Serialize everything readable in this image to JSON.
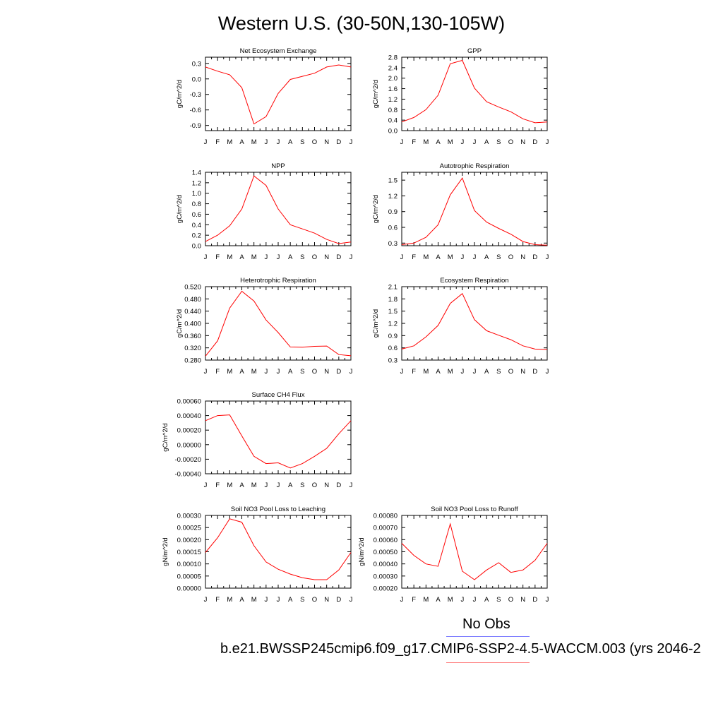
{
  "figure": {
    "title": "Western U.S. (30-50N,130-105W)"
  },
  "legend": {
    "obs_label": "No Obs",
    "obs_color": "#8080ff",
    "model_label": "b.e21.BWSSP245cmip6.f09_g17.CMIP6-SSP2-4.5-WACCM.003 (yrs 2046-2",
    "model_color": "#ff8080"
  },
  "chart_data": [
    {
      "type": "line",
      "title": "Net Ecosystem Exchange",
      "ylabel": "gC/m^2/d",
      "xlabel": "",
      "categories": [
        "J",
        "F",
        "M",
        "A",
        "M",
        "J",
        "J",
        "A",
        "S",
        "O",
        "N",
        "D",
        "J"
      ],
      "ylim": [
        -1.0,
        0.42
      ],
      "yticks": [
        0.3,
        0.0,
        -0.3,
        -0.6,
        -0.9
      ],
      "ytick_labels": [
        "0.3",
        "0.0",
        "-0.3",
        "-0.6",
        "-0.9"
      ],
      "series": [
        {
          "color": "#ff0000",
          "values": [
            0.23,
            0.15,
            0.08,
            -0.17,
            -0.87,
            -0.73,
            -0.28,
            -0.01,
            0.05,
            0.11,
            0.23,
            0.27,
            0.23
          ]
        }
      ]
    },
    {
      "type": "line",
      "title": "GPP",
      "ylabel": "gC/m^2/d",
      "xlabel": "",
      "categories": [
        "J",
        "F",
        "M",
        "A",
        "M",
        "J",
        "J",
        "A",
        "S",
        "O",
        "N",
        "D",
        "J"
      ],
      "ylim": [
        0.0,
        2.8
      ],
      "yticks": [
        0.0,
        0.4,
        0.8,
        1.2,
        1.6,
        2.0,
        2.4,
        2.8
      ],
      "ytick_labels": [
        "0.0",
        "0.4",
        "0.8",
        "1.2",
        "1.6",
        "2.0",
        "2.4",
        "2.8"
      ],
      "series": [
        {
          "color": "#ff0000",
          "values": [
            0.33,
            0.5,
            0.8,
            1.35,
            2.55,
            2.68,
            1.62,
            1.1,
            0.9,
            0.72,
            0.45,
            0.3,
            0.33
          ]
        }
      ]
    },
    {
      "type": "line",
      "title": "NPP",
      "ylabel": "gC/m^2/d",
      "xlabel": "",
      "categories": [
        "J",
        "F",
        "M",
        "A",
        "M",
        "J",
        "J",
        "A",
        "S",
        "O",
        "N",
        "D",
        "J"
      ],
      "ylim": [
        0.0,
        1.4
      ],
      "yticks": [
        0.0,
        0.2,
        0.4,
        0.6,
        0.8,
        1.0,
        1.2,
        1.4
      ],
      "ytick_labels": [
        "0.0",
        "0.2",
        "0.4",
        "0.6",
        "0.8",
        "1.0",
        "1.2",
        "1.4"
      ],
      "series": [
        {
          "color": "#ff0000",
          "values": [
            0.08,
            0.2,
            0.38,
            0.7,
            1.33,
            1.15,
            0.7,
            0.4,
            0.32,
            0.24,
            0.12,
            0.04,
            0.07
          ]
        }
      ]
    },
    {
      "type": "line",
      "title": "Autotrophic Respiration",
      "ylabel": "gC/m^2/d",
      "xlabel": "",
      "categories": [
        "J",
        "F",
        "M",
        "A",
        "M",
        "J",
        "J",
        "A",
        "S",
        "O",
        "N",
        "D",
        "J"
      ],
      "ylim": [
        0.25,
        1.65
      ],
      "yticks": [
        0.3,
        0.6,
        0.9,
        1.2,
        1.5
      ],
      "ytick_labels": [
        "0.3",
        "0.6",
        "0.9",
        "1.2",
        "1.5"
      ],
      "series": [
        {
          "color": "#ff0000",
          "values": [
            0.27,
            0.3,
            0.41,
            0.65,
            1.22,
            1.54,
            0.92,
            0.7,
            0.58,
            0.47,
            0.33,
            0.27,
            0.26
          ]
        }
      ]
    },
    {
      "type": "line",
      "title": "Heterotrophic Respiration",
      "ylabel": "gC/m^2/d",
      "xlabel": "",
      "categories": [
        "J",
        "F",
        "M",
        "A",
        "M",
        "J",
        "J",
        "A",
        "S",
        "O",
        "N",
        "D",
        "J"
      ],
      "ylim": [
        0.28,
        0.52
      ],
      "yticks": [
        0.28,
        0.32,
        0.36,
        0.4,
        0.44,
        0.48,
        0.52
      ],
      "ytick_labels": [
        "0.280",
        "0.320",
        "0.360",
        "0.400",
        "0.440",
        "0.480",
        "0.520"
      ],
      "series": [
        {
          "color": "#ff0000",
          "values": [
            0.293,
            0.343,
            0.45,
            0.505,
            0.473,
            0.411,
            0.37,
            0.323,
            0.322,
            0.325,
            0.326,
            0.298,
            0.294
          ]
        }
      ]
    },
    {
      "type": "line",
      "title": "Ecosystem Respiration",
      "ylabel": "gC/m^2/d",
      "xlabel": "",
      "categories": [
        "J",
        "F",
        "M",
        "A",
        "M",
        "J",
        "J",
        "A",
        "S",
        "O",
        "N",
        "D",
        "J"
      ],
      "ylim": [
        0.3,
        2.1
      ],
      "yticks": [
        0.3,
        0.6,
        0.9,
        1.2,
        1.5,
        1.8,
        2.1
      ],
      "ytick_labels": [
        "0.3",
        "0.6",
        "0.9",
        "1.2",
        "1.5",
        "1.8",
        "2.1"
      ],
      "series": [
        {
          "color": "#ff0000",
          "values": [
            0.57,
            0.65,
            0.87,
            1.15,
            1.69,
            1.93,
            1.29,
            1.02,
            0.91,
            0.8,
            0.65,
            0.57,
            0.56
          ]
        }
      ]
    },
    {
      "type": "line",
      "title": "Surface CH4 Flux",
      "ylabel": "gC/m^2/d",
      "xlabel": "",
      "categories": [
        "J",
        "F",
        "M",
        "A",
        "M",
        "J",
        "J",
        "A",
        "S",
        "O",
        "N",
        "D",
        "J"
      ],
      "ylim": [
        -0.0004,
        0.0006
      ],
      "yticks": [
        -0.0004,
        -0.0002,
        0.0,
        0.0002,
        0.0004,
        0.0006
      ],
      "ytick_labels": [
        "-0.00040",
        "-0.00020",
        "0.00000",
        "0.00020",
        "0.00040",
        "0.00060"
      ],
      "series": [
        {
          "color": "#ff0000",
          "values": [
            0.00033,
            0.0004,
            0.00041,
            0.00012,
            -0.00016,
            -0.00026,
            -0.00025,
            -0.00032,
            -0.00026,
            -0.00016,
            -5e-05,
            0.00015,
            0.00033
          ]
        }
      ]
    },
    {
      "type": "line",
      "title": "Soil NO3 Pool Loss to Leaching",
      "ylabel": "gN/m^2/d",
      "xlabel": "",
      "categories": [
        "J",
        "F",
        "M",
        "A",
        "M",
        "J",
        "J",
        "A",
        "S",
        "O",
        "N",
        "D",
        "J"
      ],
      "ylim": [
        0.0,
        0.0003
      ],
      "yticks": [
        0.0,
        5e-05,
        0.0001,
        0.00015,
        0.0002,
        0.00025,
        0.0003
      ],
      "ytick_labels": [
        "0.00000",
        "0.00005",
        "0.00010",
        "0.00015",
        "0.00020",
        "0.00025",
        "0.00030"
      ],
      "series": [
        {
          "color": "#ff0000",
          "values": [
            0.000147,
            0.000208,
            0.000286,
            0.000272,
            0.000175,
            0.000108,
            7.8e-05,
            5.8e-05,
            4.3e-05,
            3.5e-05,
            3.5e-05,
            7.5e-05,
            0.000147
          ]
        }
      ]
    },
    {
      "type": "line",
      "title": "Soil NO3 Pool Loss to Runoff",
      "ylabel": "gN/m^2/d",
      "xlabel": "",
      "categories": [
        "J",
        "F",
        "M",
        "A",
        "M",
        "J",
        "J",
        "A",
        "S",
        "O",
        "N",
        "D",
        "J"
      ],
      "ylim": [
        0.0002,
        0.0008
      ],
      "yticks": [
        0.0002,
        0.0003,
        0.0004,
        0.0005,
        0.0006,
        0.0007,
        0.0008
      ],
      "ytick_labels": [
        "0.00020",
        "0.00030",
        "0.00040",
        "0.00050",
        "0.00060",
        "0.00070",
        "0.00080"
      ],
      "series": [
        {
          "color": "#ff0000",
          "values": [
            0.00057,
            0.00047,
            0.0004,
            0.00038,
            0.00073,
            0.00034,
            0.00027,
            0.00035,
            0.00041,
            0.00033,
            0.00035,
            0.00043,
            0.00057
          ]
        }
      ]
    }
  ]
}
